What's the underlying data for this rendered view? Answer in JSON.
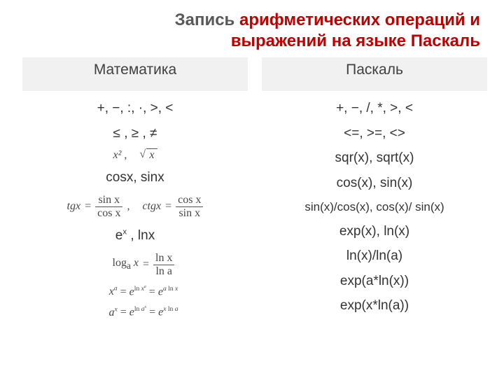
{
  "title_line1_plain": "Запись ",
  "title_line1_accent": "арифметических операций и",
  "title_line2_accent": "выражений на языке Паскаль",
  "headers": {
    "left": "Математика",
    "right": "Паскаль"
  },
  "left": {
    "ops1": "+,  −,  :,  ·, >, <",
    "ops2": "≤ ,  ≥ ,  ≠",
    "trig": "cosx, sinx",
    "exp": "eˣ , lnx",
    "tg_label": "tgx",
    "ctg_label": "ctgx",
    "sinx": "sin x",
    "cosx": "cos x",
    "log_label": "logₐ x",
    "lnx": "ln x",
    "lna": "ln a",
    "xa_lhs": "xᵃ",
    "xa_mid": "eˡⁿ ˣᵃ",
    "xa_rhs": "eᵃ ˡⁿ ˣ",
    "ax_lhs": "aˣ",
    "ax_mid": "eˡⁿ ᵃˣ",
    "ax_rhs": "eˣ ˡⁿ ᵃ",
    "x2": "x²",
    "sqrt_x": "x"
  },
  "right": {
    "ops1": "+,  −, /, *, >, <",
    "ops2": "<=,  >=,  <>",
    "sqr": "sqr(x), sqrt(x)",
    "trig": "cos(x), sin(x)",
    "tan": "sin(x)/cos(x), cos(x)/ sin(x)",
    "exp": "exp(x), ln(x)",
    "log": "ln(x)/ln(a)",
    "xa": "exp(a*ln(x))",
    "ax": "exp(x*ln(a))"
  },
  "colors": {
    "accent": "#c00000",
    "text": "#404040",
    "header_bg": "#f1f1f1",
    "bg": "#ffffff"
  }
}
